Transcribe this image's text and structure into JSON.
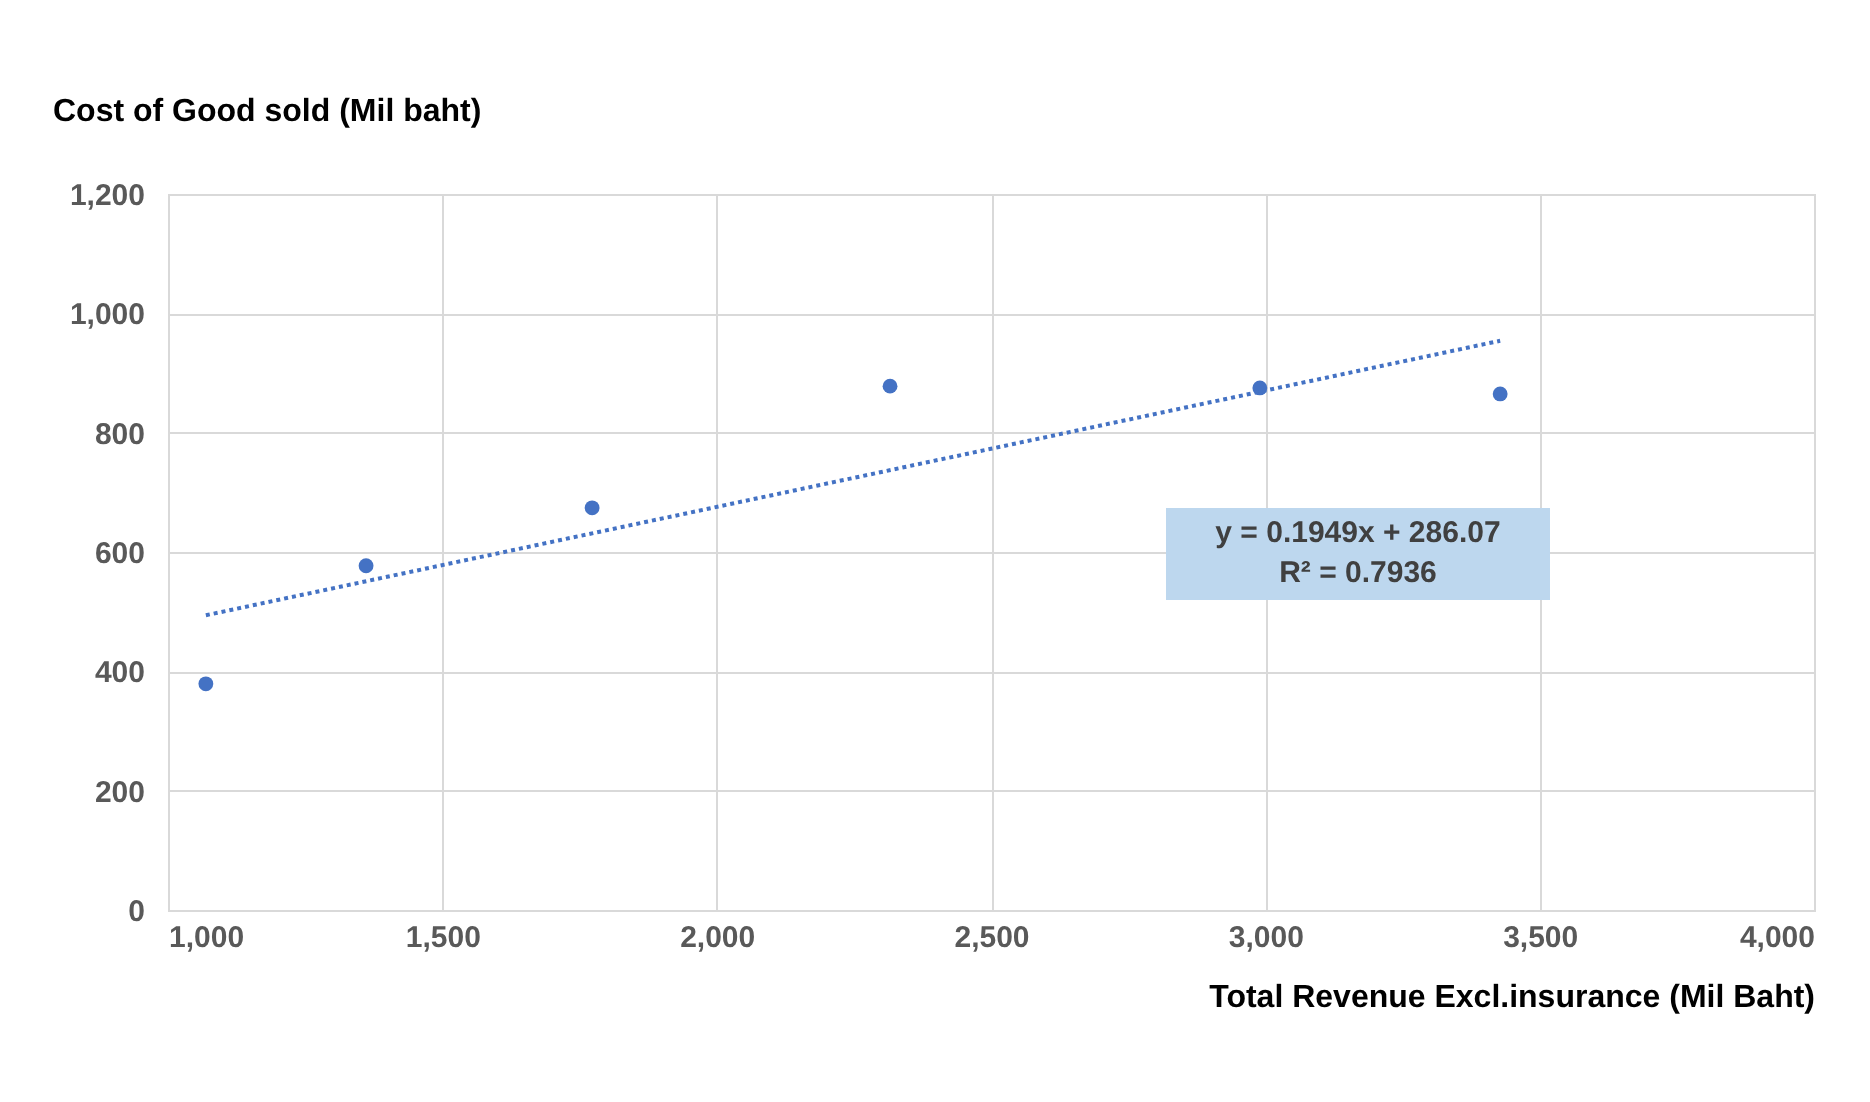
{
  "chart_data": {
    "type": "scatter",
    "xlabel": "Total Revenue Excl.insurance  (Mil Baht)",
    "ylabel": "Cost of Good sold (Mil  baht)",
    "x": [
      1069,
      1361,
      1773,
      2316,
      2990,
      3428
    ],
    "series": [
      {
        "type": "scatter",
        "color": "#4472c4",
        "values": [
          379,
          577,
          674,
          878,
          875,
          865
        ],
        "marker": "circle"
      },
      {
        "type": "line",
        "color": "#4472c4",
        "x": [
          1069,
          3428
        ],
        "values": [
          494,
          954
        ],
        "line_style": "dotted",
        "marker": "none"
      }
    ],
    "xlim": [
      1000,
      4000
    ],
    "xticks": [
      {
        "value": 1000,
        "label": "1,000"
      },
      {
        "value": 1500,
        "label": "1,500"
      },
      {
        "value": 2000,
        "label": "2,000"
      },
      {
        "value": 2500,
        "label": "2,500"
      },
      {
        "value": 3000,
        "label": "3,000"
      },
      {
        "value": 3500,
        "label": "3,500"
      },
      {
        "value": 4000,
        "label": "4,000"
      }
    ],
    "ylim": [
      0,
      1200
    ],
    "yticks": [
      0,
      200,
      400,
      600,
      800,
      {
        "value": 1000,
        "label": "1,000"
      },
      {
        "value": 1200,
        "label": "1,200"
      }
    ],
    "grid": true,
    "annotations": [
      "y = 0.1949x + 286.07",
      "R² = 0.7936"
    ]
  }
}
